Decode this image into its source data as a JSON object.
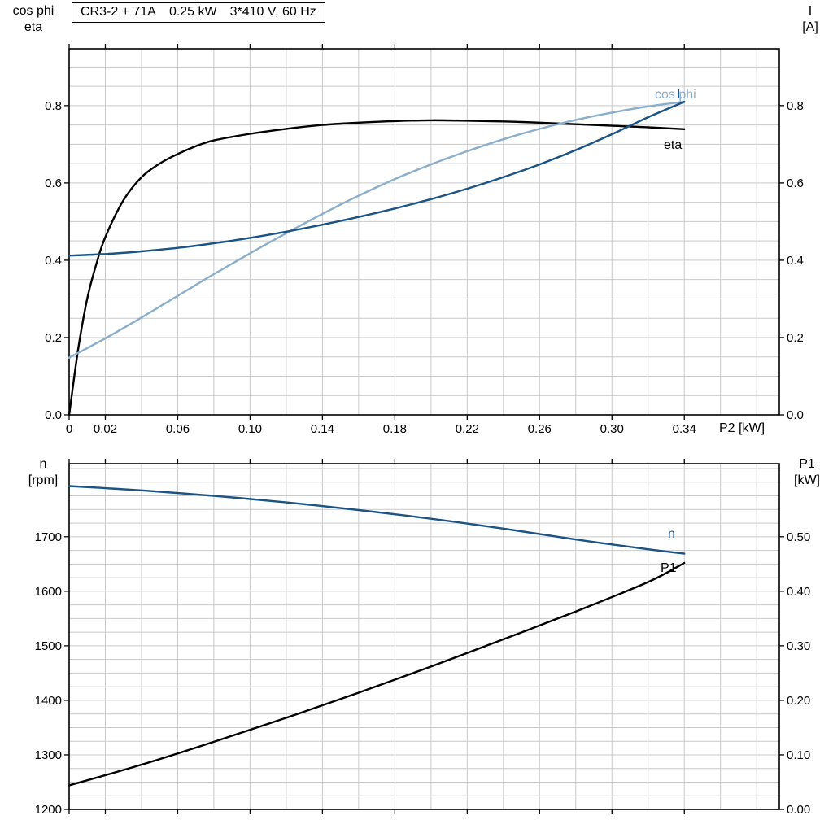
{
  "title": {
    "parts": [
      "CR3-2 + 71A",
      "0.25 kW",
      "3*410 V, 60 Hz"
    ]
  },
  "axes_corner_labels": {
    "top_left": [
      "cos phi",
      "eta"
    ],
    "top_right": [
      "I",
      "[A]"
    ],
    "bottom_left": [
      "n",
      "[rpm]"
    ],
    "bottom_right": [
      "P1",
      "[kW]"
    ]
  },
  "curve_labels": {
    "cos_phi": "cos phi",
    "current": "I",
    "eta": "eta",
    "n": "n",
    "p1": "P1"
  },
  "colors": {
    "dark_blue": "#1a5486",
    "light_blue": "#8aaecb",
    "black": "#000000",
    "grid": "#c9c9c9",
    "frame": "#000000"
  },
  "chart_data": [
    {
      "type": "line",
      "title": "CR3-2 + 71A  0.25 kW  3*410 V, 60 Hz",
      "x_axis": {
        "label": "P2 [kW]",
        "lim": [
          0,
          0.3925
        ],
        "grid_step": 0.02,
        "tick_values": [
          0,
          0.02,
          0.06,
          0.1,
          0.14,
          0.18,
          0.22,
          0.26,
          0.3,
          0.34
        ],
        "tick_labels": [
          "0",
          "0.02",
          "0.06",
          "0.10",
          "0.14",
          "0.18",
          "0.22",
          "0.26",
          "0.30",
          "0.34"
        ]
      },
      "y_left": {
        "label": "cos phi / eta",
        "lim": [
          0,
          0.947
        ],
        "grid_step": 0.05,
        "tick_values": [
          0,
          0.2,
          0.4,
          0.6,
          0.8
        ],
        "tick_labels": [
          "0.0",
          "0.2",
          "0.4",
          "0.6",
          "0.8"
        ]
      },
      "y_right": {
        "label": "I [A]",
        "lim": [
          0,
          0.947
        ],
        "tick_values": [
          0,
          0.2,
          0.4,
          0.6,
          0.8
        ],
        "tick_labels": [
          "0.0",
          "0.2",
          "0.4",
          "0.6",
          "0.8"
        ]
      },
      "series": [
        {
          "name": "eta",
          "axis": "left",
          "color": "#000000",
          "x": [
            0,
            0.005,
            0.01,
            0.015,
            0.02,
            0.03,
            0.04,
            0.05,
            0.06,
            0.07,
            0.08,
            0.1,
            0.12,
            0.14,
            0.16,
            0.18,
            0.2,
            0.22,
            0.24,
            0.26,
            0.28,
            0.3,
            0.32,
            0.34
          ],
          "y": [
            0,
            0.17,
            0.3,
            0.39,
            0.46,
            0.555,
            0.615,
            0.65,
            0.675,
            0.695,
            0.71,
            0.727,
            0.74,
            0.75,
            0.756,
            0.76,
            0.762,
            0.761,
            0.759,
            0.756,
            0.752,
            0.748,
            0.744,
            0.739
          ]
        },
        {
          "name": "cos phi",
          "axis": "left",
          "color": "#8aaecb",
          "x": [
            0,
            0.02,
            0.04,
            0.06,
            0.08,
            0.1,
            0.12,
            0.14,
            0.16,
            0.18,
            0.2,
            0.22,
            0.24,
            0.26,
            0.28,
            0.3,
            0.32,
            0.34
          ],
          "y": [
            0.148,
            0.198,
            0.252,
            0.308,
            0.364,
            0.418,
            0.47,
            0.52,
            0.567,
            0.61,
            0.648,
            0.682,
            0.713,
            0.74,
            0.763,
            0.782,
            0.798,
            0.81
          ]
        },
        {
          "name": "I",
          "axis": "left",
          "color": "#1a5486",
          "x": [
            0,
            0.02,
            0.04,
            0.06,
            0.08,
            0.1,
            0.12,
            0.14,
            0.16,
            0.18,
            0.2,
            0.22,
            0.24,
            0.26,
            0.28,
            0.3,
            0.32,
            0.34
          ],
          "y": [
            0.412,
            0.416,
            0.423,
            0.432,
            0.444,
            0.458,
            0.474,
            0.492,
            0.512,
            0.534,
            0.558,
            0.585,
            0.615,
            0.648,
            0.685,
            0.726,
            0.77,
            0.81
          ]
        }
      ]
    },
    {
      "type": "line",
      "title": "",
      "x_axis": {
        "label": "",
        "lim": [
          0,
          0.3925
        ],
        "grid_step": 0.02,
        "tick_values": [
          0,
          0.02,
          0.06,
          0.1,
          0.14,
          0.18,
          0.22,
          0.26,
          0.3,
          0.34
        ],
        "tick_labels": []
      },
      "y_left": {
        "label": "n [rpm]",
        "lim": [
          1200,
          1834
        ],
        "grid_step": 25,
        "tick_values": [
          1200,
          1300,
          1400,
          1500,
          1600,
          1700
        ],
        "tick_labels": [
          "1200",
          "1300",
          "1400",
          "1500",
          "1600",
          "1700"
        ]
      },
      "y_right": {
        "label": "P1 [kW]",
        "lim": [
          0,
          0.634
        ],
        "tick_values": [
          0,
          0.1,
          0.2,
          0.3,
          0.4,
          0.5
        ],
        "tick_labels": [
          "0.00",
          "0.10",
          "0.20",
          "0.30",
          "0.40",
          "0.50"
        ]
      },
      "series": [
        {
          "name": "n",
          "axis": "left",
          "color": "#1a5486",
          "x": [
            0,
            0.04,
            0.08,
            0.12,
            0.16,
            0.2,
            0.24,
            0.28,
            0.32,
            0.34
          ],
          "y": [
            1793,
            1785,
            1775,
            1763,
            1749,
            1733,
            1715,
            1695,
            1677,
            1669
          ]
        },
        {
          "name": "P1",
          "axis": "right",
          "color": "#000000",
          "x": [
            0,
            0.04,
            0.08,
            0.12,
            0.16,
            0.2,
            0.24,
            0.28,
            0.32,
            0.34
          ],
          "y": [
            0.044,
            0.082,
            0.124,
            0.168,
            0.214,
            0.262,
            0.312,
            0.363,
            0.417,
            0.452
          ]
        }
      ]
    }
  ]
}
